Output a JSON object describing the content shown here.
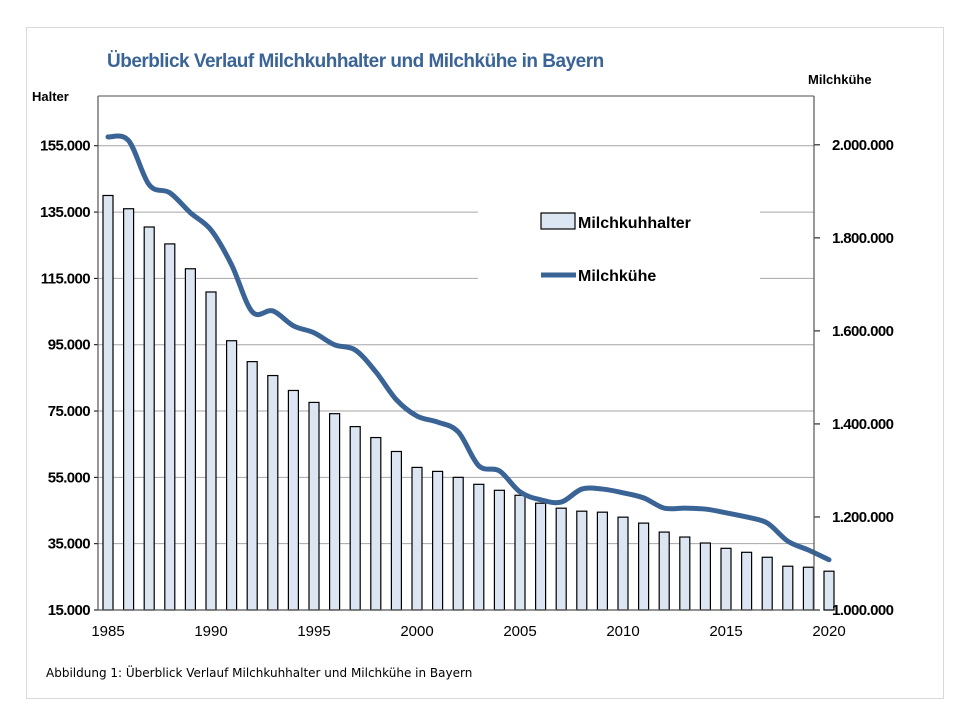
{
  "chart_data": {
    "type": "bar+line",
    "title": "Überblick Verlauf Milchkuhhalter und Milchkühe in Bayern",
    "caption": "Abbildung 1: Überblick Verlauf Milchkuhhalter und Milchkühe in Bayern",
    "ylabel_left": "Halter",
    "ylabel_right": "Milchkühe",
    "x": [
      1985,
      1986,
      1987,
      1988,
      1989,
      1990,
      1991,
      1992,
      1993,
      1994,
      1995,
      1996,
      1997,
      1998,
      1999,
      2000,
      2001,
      2002,
      2003,
      2004,
      2005,
      2006,
      2007,
      2008,
      2009,
      2010,
      2011,
      2012,
      2013,
      2014,
      2015,
      2016,
      2017,
      2018,
      2019,
      2020
    ],
    "x_tick_labels": [
      "1985",
      "1990",
      "1995",
      "2000",
      "2005",
      "2010",
      "2015",
      "2020"
    ],
    "y_left_ticks": [
      "15.000",
      "35.000",
      "55.000",
      "75.000",
      "95.000",
      "115.000",
      "135.000",
      "155.000"
    ],
    "y_left_tick_values": [
      15000,
      35000,
      55000,
      75000,
      95000,
      115000,
      135000,
      155000
    ],
    "y_right_ticks": [
      "1.000.000",
      "1.200.000",
      "1.400.000",
      "1.600.000",
      "1.800.000",
      "2.000.000"
    ],
    "y_right_tick_values": [
      1000000,
      1200000,
      1400000,
      1600000,
      1800000,
      2000000
    ],
    "ylim_left": [
      15000,
      170000
    ],
    "ylim_right": [
      1000000,
      2105000
    ],
    "grid": true,
    "legend_placement": "upper-right inside",
    "series": [
      {
        "name": "Milchkuhhalter",
        "type": "bar",
        "axis": "left",
        "color": "#dce6f2",
        "values": [
          140000,
          136000,
          130500,
          125400,
          117900,
          110900,
          96200,
          89900,
          85700,
          81200,
          77600,
          74200,
          70300,
          67000,
          62800,
          58000,
          56800,
          55000,
          52900,
          51100,
          49600,
          47200,
          45700,
          44800,
          44500,
          43000,
          41200,
          38500,
          37000,
          35200,
          33600,
          32400,
          30900,
          28200,
          27900,
          26700
        ]
      },
      {
        "name": "Milchkühe",
        "type": "line",
        "axis": "right",
        "color": "#3a6496",
        "values": [
          2017000,
          2009000,
          1914000,
          1897000,
          1854000,
          1817000,
          1742000,
          1641000,
          1643000,
          1611000,
          1596000,
          1570000,
          1559000,
          1512000,
          1452000,
          1417000,
          1404000,
          1383000,
          1310000,
          1299000,
          1254000,
          1237000,
          1232000,
          1260000,
          1260000,
          1252000,
          1241000,
          1219000,
          1219000,
          1217000,
          1209000,
          1200000,
          1187000,
          1148000,
          1129000,
          1108000
        ]
      }
    ]
  }
}
